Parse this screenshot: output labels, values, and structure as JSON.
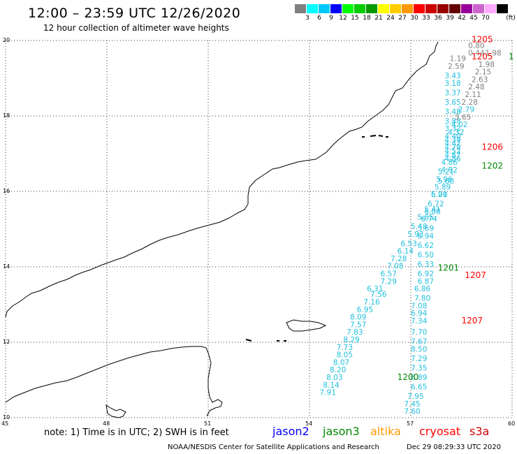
{
  "header": {
    "title": "12:00 – 23:59 UTC 12/26/2020",
    "subtitle": "12 hour collection of altimeter wave heights"
  },
  "legend": {
    "unit": "(ft)",
    "swatches": [
      {
        "color": "#808080",
        "label": ""
      },
      {
        "color": "#00ffff",
        "label": "3"
      },
      {
        "color": "#00c8ff",
        "label": "6"
      },
      {
        "color": "#0000ff",
        "label": "9"
      },
      {
        "color": "#00ff00",
        "label": "12"
      },
      {
        "color": "#00cc00",
        "label": "15"
      },
      {
        "color": "#009900",
        "label": "18"
      },
      {
        "color": "#ffff00",
        "label": "21"
      },
      {
        "color": "#ffcc00",
        "label": "24"
      },
      {
        "color": "#ff9900",
        "label": "27"
      },
      {
        "color": "#ff0000",
        "label": "30"
      },
      {
        "color": "#cc0000",
        "label": "33"
      },
      {
        "color": "#990000",
        "label": "36"
      },
      {
        "color": "#660000",
        "label": "39"
      },
      {
        "color": "#990099",
        "label": "42"
      },
      {
        "color": "#cc66cc",
        "label": "45"
      },
      {
        "color": "#ffaaff",
        "label": "70"
      },
      {
        "color": "#000000",
        "label": ""
      }
    ]
  },
  "axes": {
    "lon_ticks": [
      "45",
      "48",
      "51",
      "54",
      "57",
      "60"
    ],
    "lat_ticks": [
      "20",
      "18",
      "16",
      "14",
      "12",
      "10"
    ]
  },
  "note": "note:  1) Time is in UTC;  2) SWH is in feet",
  "satellites": [
    {
      "name": "jason2",
      "color": "#0000ff"
    },
    {
      "name": "jason3",
      "color": "#008800"
    },
    {
      "name": "altika",
      "color": "#ff9900"
    },
    {
      "name": "cryosat",
      "color": "#ff0000"
    },
    {
      "name": "s3a",
      "color": "#cc0000"
    }
  ],
  "footer": {
    "credit": "NOAA/NESDIS Center for Satellite Applications and Research",
    "stamp": "Dec 29 08:29:33 UTC 2020"
  },
  "chart_data": {
    "type": "scatter",
    "xlim": [
      45,
      60
    ],
    "ylim": [
      10,
      20
    ],
    "grid": true,
    "track_labels": [
      {
        "text": "1205",
        "color": "#ff0000",
        "lon": 58.8,
        "lat": 19.95
      },
      {
        "text": "1205",
        "color": "#ff0000",
        "lon": 58.8,
        "lat": 19.5
      },
      {
        "text": "1206",
        "color": "#ff0000",
        "lon": 59.1,
        "lat": 17.1
      },
      {
        "text": "1202",
        "color": "#008800",
        "lon": 59.1,
        "lat": 16.6
      },
      {
        "text": "1201",
        "color": "#008800",
        "lon": 57.8,
        "lat": 13.9
      },
      {
        "text": "1207",
        "color": "#ff0000",
        "lon": 58.6,
        "lat": 13.7
      },
      {
        "text": "1207",
        "color": "#ff0000",
        "lon": 58.5,
        "lat": 12.5
      },
      {
        "text": "1200",
        "color": "#008800",
        "lon": 56.6,
        "lat": 11.0
      },
      {
        "text": "1",
        "color": "#008800",
        "lon": 59.9,
        "lat": 19.5
      }
    ],
    "series": [
      {
        "name": "track-a",
        "color": "#20c0dd",
        "points": [
          {
            "lon": 58.15,
            "lat": 19.45,
            "v": "1.19",
            "c": "#808080"
          },
          {
            "lon": 58.1,
            "lat": 19.25,
            "v": "2.59",
            "c": "#808080"
          },
          {
            "lon": 58.0,
            "lat": 19.0,
            "v": "3.43"
          },
          {
            "lon": 58.0,
            "lat": 18.8,
            "v": "3.18"
          },
          {
            "lon": 58.0,
            "lat": 18.55,
            "v": "3.37"
          },
          {
            "lon": 58.0,
            "lat": 18.3,
            "v": "3.65"
          },
          {
            "lon": 58.0,
            "lat": 18.05,
            "v": "3.48"
          },
          {
            "lon": 58.0,
            "lat": 17.8,
            "v": "3.88"
          },
          {
            "lon": 58.0,
            "lat": 17.6,
            "v": "3.32"
          },
          {
            "lon": 58.0,
            "lat": 17.4,
            "v": "4.40"
          },
          {
            "lon": 58.0,
            "lat": 17.2,
            "v": "4.47"
          },
          {
            "lon": 58.0,
            "lat": 17.0,
            "v": "4.52"
          },
          {
            "lon": 58.0,
            "lat": 16.8,
            "v": "4.86"
          },
          {
            "lon": 57.9,
            "lat": 16.5,
            "v": "4.92"
          },
          {
            "lon": 57.8,
            "lat": 16.2,
            "v": "5.60"
          },
          {
            "lon": 57.6,
            "lat": 15.85,
            "v": "5.20"
          },
          {
            "lon": 57.4,
            "lat": 15.45,
            "v": "5.41"
          },
          {
            "lon": 57.2,
            "lat": 15.25,
            "v": "5.65"
          },
          {
            "lon": 57.0,
            "lat": 15.0,
            "v": "5.48"
          },
          {
            "lon": 56.9,
            "lat": 14.8,
            "v": "5.93"
          },
          {
            "lon": 56.7,
            "lat": 14.55,
            "v": "6.53"
          },
          {
            "lon": 56.6,
            "lat": 14.35,
            "v": "6.14"
          },
          {
            "lon": 56.4,
            "lat": 14.15,
            "v": "7.28"
          },
          {
            "lon": 56.3,
            "lat": 13.95,
            "v": "7.08"
          },
          {
            "lon": 56.1,
            "lat": 13.75,
            "v": "6.57"
          },
          {
            "lon": 56.1,
            "lat": 13.55,
            "v": "7.29"
          },
          {
            "lon": 55.7,
            "lat": 13.35,
            "v": "6.31"
          },
          {
            "lon": 55.8,
            "lat": 13.2,
            "v": "7.56"
          },
          {
            "lon": 55.6,
            "lat": 13.0,
            "v": "7.16"
          },
          {
            "lon": 55.4,
            "lat": 12.8,
            "v": "6.95"
          },
          {
            "lon": 55.2,
            "lat": 12.6,
            "v": "8.09"
          },
          {
            "lon": 55.2,
            "lat": 12.4,
            "v": "7.57"
          },
          {
            "lon": 55.1,
            "lat": 12.2,
            "v": "7.83"
          },
          {
            "lon": 55.0,
            "lat": 12.0,
            "v": "8.29"
          },
          {
            "lon": 54.8,
            "lat": 11.8,
            "v": "7.73"
          },
          {
            "lon": 54.8,
            "lat": 11.6,
            "v": "8.05"
          },
          {
            "lon": 54.7,
            "lat": 11.4,
            "v": "8.07"
          },
          {
            "lon": 54.6,
            "lat": 11.2,
            "v": "8.20"
          },
          {
            "lon": 54.5,
            "lat": 11.0,
            "v": "8.03"
          },
          {
            "lon": 54.4,
            "lat": 10.8,
            "v": "8.14"
          },
          {
            "lon": 54.3,
            "lat": 10.6,
            "v": "7.91"
          }
        ]
      },
      {
        "name": "track-b",
        "color": "#20c0dd",
        "points": [
          {
            "lon": 58.7,
            "lat": 19.8,
            "v": "0.80",
            "c": "#808080"
          },
          {
            "lon": 58.7,
            "lat": 19.6,
            "v": "0.44",
            "c": "#808080"
          },
          {
            "lon": 59.2,
            "lat": 19.6,
            "v": "1.98",
            "c": "#808080"
          },
          {
            "lon": 59.0,
            "lat": 19.3,
            "v": "1.98",
            "c": "#808080"
          },
          {
            "lon": 58.9,
            "lat": 19.1,
            "v": "2.15",
            "c": "#808080"
          },
          {
            "lon": 58.8,
            "lat": 18.9,
            "v": "2.63",
            "c": "#808080"
          },
          {
            "lon": 58.7,
            "lat": 18.7,
            "v": "2.48",
            "c": "#808080"
          },
          {
            "lon": 58.6,
            "lat": 18.5,
            "v": "2.11",
            "c": "#808080"
          },
          {
            "lon": 58.5,
            "lat": 18.3,
            "v": "2.28",
            "c": "#808080"
          },
          {
            "lon": 58.4,
            "lat": 18.1,
            "v": "2.79"
          },
          {
            "lon": 58.3,
            "lat": 17.9,
            "v": "3.65",
            "c": "#808080"
          },
          {
            "lon": 58.2,
            "lat": 17.7,
            "v": "4.02"
          },
          {
            "lon": 58.1,
            "lat": 17.5,
            "v": "4.32"
          },
          {
            "lon": 58.0,
            "lat": 17.3,
            "v": "4.39"
          },
          {
            "lon": 58.0,
            "lat": 17.1,
            "v": "4.79"
          },
          {
            "lon": 58.0,
            "lat": 16.9,
            "v": "4.67"
          },
          {
            "lon": 57.9,
            "lat": 16.7,
            "v": "4.86"
          },
          {
            "lon": 57.8,
            "lat": 16.45,
            "v": "5.21"
          },
          {
            "lon": 57.75,
            "lat": 16.25,
            "v": "5.96"
          },
          {
            "lon": 57.7,
            "lat": 16.05,
            "v": "5.89"
          },
          {
            "lon": 57.6,
            "lat": 15.85,
            "v": "6.01"
          },
          {
            "lon": 57.5,
            "lat": 15.6,
            "v": "6.72"
          },
          {
            "lon": 57.4,
            "lat": 15.4,
            "v": "6.08"
          },
          {
            "lon": 57.3,
            "lat": 15.2,
            "v": "6.74"
          },
          {
            "lon": 57.2,
            "lat": 14.95,
            "v": "5.69"
          },
          {
            "lon": 57.2,
            "lat": 14.75,
            "v": "6.94"
          },
          {
            "lon": 57.2,
            "lat": 14.5,
            "v": "6.62"
          },
          {
            "lon": 57.2,
            "lat": 14.25,
            "v": "6.50"
          },
          {
            "lon": 57.2,
            "lat": 14.0,
            "v": "6.33"
          },
          {
            "lon": 57.2,
            "lat": 13.75,
            "v": "6.92"
          },
          {
            "lon": 57.2,
            "lat": 13.55,
            "v": "6.87"
          },
          {
            "lon": 57.1,
            "lat": 13.35,
            "v": "6.86"
          },
          {
            "lon": 57.1,
            "lat": 13.1,
            "v": "7.80"
          },
          {
            "lon": 57.0,
            "lat": 12.9,
            "v": "7.08"
          },
          {
            "lon": 57.0,
            "lat": 12.7,
            "v": "6.94"
          },
          {
            "lon": 57.0,
            "lat": 12.5,
            "v": "7.34"
          },
          {
            "lon": 57.0,
            "lat": 12.2,
            "v": "7.70"
          },
          {
            "lon": 57.0,
            "lat": 11.95,
            "v": "7.67"
          },
          {
            "lon": 57.0,
            "lat": 11.75,
            "v": "8.50"
          },
          {
            "lon": 57.0,
            "lat": 11.5,
            "v": "7.29"
          },
          {
            "lon": 57.0,
            "lat": 11.25,
            "v": "7.35"
          },
          {
            "lon": 57.0,
            "lat": 11.0,
            "v": "6.89"
          },
          {
            "lon": 57.0,
            "lat": 10.75,
            "v": "6.65"
          },
          {
            "lon": 56.9,
            "lat": 10.5,
            "v": "7.95"
          },
          {
            "lon": 56.8,
            "lat": 10.3,
            "v": "7.45"
          },
          {
            "lon": 56.8,
            "lat": 10.1,
            "v": "7.60"
          }
        ]
      }
    ]
  }
}
